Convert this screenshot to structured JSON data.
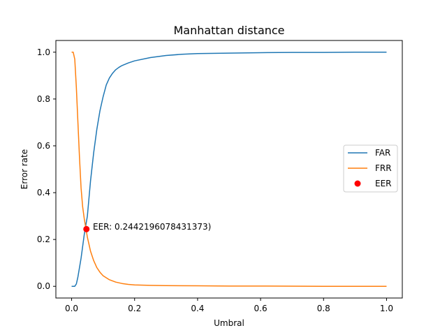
{
  "chart_data": {
    "type": "line",
    "title": "Manhattan distance",
    "xlabel": "Umbral",
    "ylabel": "Error rate",
    "xlim": [
      -0.05,
      1.05
    ],
    "ylim": [
      -0.05,
      1.05
    ],
    "xticks": [
      0.0,
      0.2,
      0.4,
      0.6,
      0.8,
      1.0
    ],
    "xtick_labels": [
      "0.0",
      "0.2",
      "0.4",
      "0.6",
      "0.8",
      "1.0"
    ],
    "yticks": [
      0.0,
      0.2,
      0.4,
      0.6,
      0.8,
      1.0
    ],
    "ytick_labels": [
      "0.0",
      "0.2",
      "0.4",
      "0.6",
      "0.8",
      "1.0"
    ],
    "grid": false,
    "legend_position": "center-right",
    "series": [
      {
        "name": "FAR",
        "color": "#1f77b4",
        "x": [
          0.0,
          0.01,
          0.015,
          0.02,
          0.025,
          0.03,
          0.035,
          0.04,
          0.045,
          0.05,
          0.06,
          0.07,
          0.08,
          0.09,
          0.1,
          0.11,
          0.12,
          0.13,
          0.14,
          0.15,
          0.16,
          0.18,
          0.2,
          0.25,
          0.3,
          0.35,
          0.4,
          0.5,
          0.6,
          0.7,
          0.8,
          0.9,
          1.0
        ],
        "y": [
          0.0,
          0.0,
          0.01,
          0.04,
          0.08,
          0.12,
          0.17,
          0.22,
          0.26,
          0.3,
          0.45,
          0.57,
          0.67,
          0.75,
          0.81,
          0.86,
          0.89,
          0.91,
          0.925,
          0.935,
          0.943,
          0.954,
          0.963,
          0.977,
          0.986,
          0.991,
          0.994,
          0.996,
          0.998,
          0.999,
          0.999,
          1.0,
          1.0
        ]
      },
      {
        "name": "FRR",
        "color": "#ff7f0e",
        "x": [
          0.0,
          0.005,
          0.01,
          0.015,
          0.02,
          0.025,
          0.03,
          0.035,
          0.04,
          0.045,
          0.05,
          0.055,
          0.06,
          0.07,
          0.08,
          0.09,
          0.1,
          0.12,
          0.14,
          0.16,
          0.18,
          0.2,
          0.25,
          0.3,
          0.4,
          0.5,
          0.6,
          0.8,
          1.0
        ],
        "y": [
          1.0,
          1.0,
          0.97,
          0.85,
          0.7,
          0.55,
          0.42,
          0.34,
          0.29,
          0.25,
          0.21,
          0.18,
          0.15,
          0.11,
          0.08,
          0.06,
          0.045,
          0.028,
          0.018,
          0.012,
          0.008,
          0.006,
          0.004,
          0.003,
          0.002,
          0.001,
          0.001,
          0.0,
          0.0
        ]
      }
    ],
    "eer": {
      "name": "EER",
      "color": "#ff0000",
      "x": 0.047,
      "y": 0.2442196078431373,
      "label": "EER: 0.2442196078431373)"
    }
  }
}
